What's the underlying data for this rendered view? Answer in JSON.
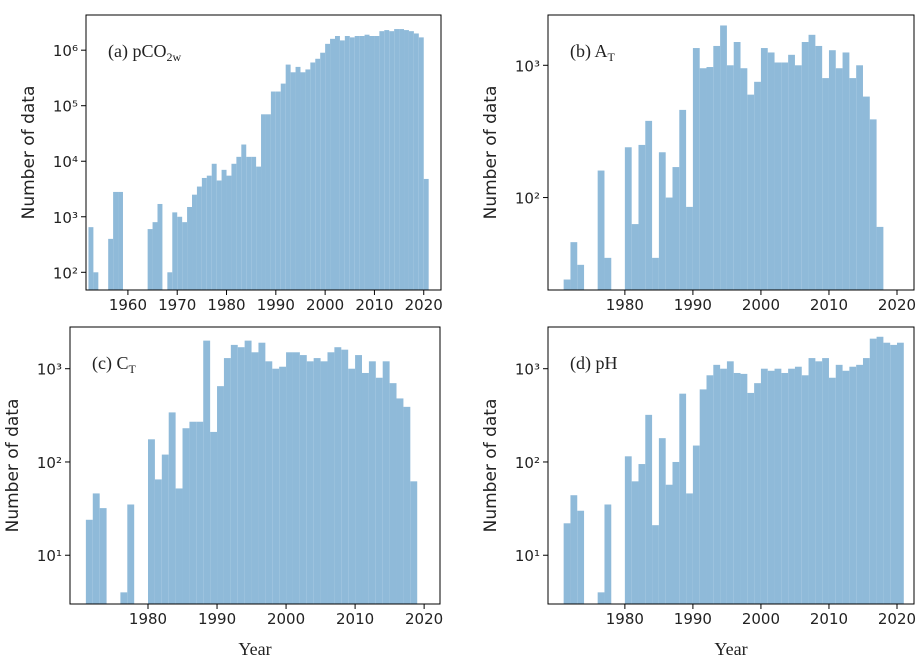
{
  "chart_data": [
    {
      "type": "histogram",
      "label": "(a) pCO",
      "label_sub": "2w",
      "ylabel": "Number of data",
      "color": "#8fbad9",
      "log_y": true,
      "bins": [
        1952,
        1953,
        1954,
        1955,
        1956,
        1957,
        1958,
        1959,
        1960,
        1961,
        1962,
        1963,
        1964,
        1965,
        1966,
        1967,
        1968,
        1969,
        1970,
        1971,
        1972,
        1973,
        1974,
        1975,
        1976,
        1977,
        1978,
        1979,
        1980,
        1981,
        1982,
        1983,
        1984,
        1985,
        1986,
        1987,
        1988,
        1989,
        1990,
        1991,
        1992,
        1993,
        1994,
        1995,
        1996,
        1997,
        1998,
        1999,
        2000,
        2001,
        2002,
        2003,
        2004,
        2005,
        2006,
        2007,
        2008,
        2009,
        2010,
        2011,
        2012,
        2013,
        2014,
        2015,
        2016,
        2017,
        2018,
        2019,
        2020,
        2021
      ],
      "values": [
        650,
        100,
        0,
        0,
        400,
        2800,
        2800,
        0,
        0,
        0,
        0,
        0,
        600,
        800,
        1700,
        0,
        100,
        1200,
        1000,
        800,
        1500,
        2500,
        3500,
        5000,
        5500,
        9000,
        4500,
        7000,
        5500,
        9000,
        12000,
        20000,
        12000,
        12000,
        8000,
        70000,
        70000,
        180000,
        180000,
        250000,
        550000,
        400000,
        500000,
        400000,
        450000,
        600000,
        700000,
        900000,
        1300000,
        1600000,
        1800000,
        1500000,
        1800000,
        1700000,
        1800000,
        1800000,
        1900000,
        1800000,
        1800000,
        2200000,
        2300000,
        2200000,
        2400000,
        2400000,
        2300000,
        2200000,
        2000000,
        1700000,
        4800
      ],
      "xlim": [
        1951.5,
        2023.5
      ],
      "xticks": [
        1960,
        1970,
        1980,
        1990,
        2000,
        2010,
        2020
      ],
      "ylim": [
        48,
        4300000
      ],
      "yticks": [
        {
          "value": 100,
          "label": "10²"
        },
        {
          "value": 1000,
          "label": "10³"
        },
        {
          "value": 10000,
          "label": "10⁴"
        },
        {
          "value": 100000,
          "label": "10⁵"
        },
        {
          "value": 1000000,
          "label": "10⁶"
        }
      ]
    },
    {
      "type": "histogram",
      "label": "(b) A",
      "label_sub": "T",
      "ylabel": "Number of data",
      "color": "#8fbad9",
      "log_y": true,
      "bins": [
        1971,
        1972,
        1973,
        1974,
        1975,
        1976,
        1977,
        1978,
        1979,
        1980,
        1981,
        1982,
        1983,
        1984,
        1985,
        1986,
        1987,
        1988,
        1989,
        1990,
        1991,
        1992,
        1993,
        1994,
        1995,
        1996,
        1997,
        1998,
        1999,
        2000,
        2001,
        2002,
        2003,
        2004,
        2005,
        2006,
        2007,
        2008,
        2009,
        2010,
        2011,
        2012,
        2013,
        2014,
        2015,
        2016,
        2017,
        2018
      ],
      "values": [
        24,
        46,
        31,
        0,
        0,
        160,
        35,
        0,
        0,
        240,
        63,
        250,
        380,
        35,
        220,
        100,
        170,
        460,
        85,
        1350,
        950,
        970,
        1400,
        2000,
        1000,
        1500,
        950,
        600,
        750,
        1350,
        1250,
        1050,
        1050,
        1200,
        1000,
        1500,
        1700,
        1400,
        800,
        1300,
        950,
        1250,
        800,
        1000,
        580,
        390,
        60
      ],
      "xlim": [
        1968.7,
        2022.5
      ],
      "xticks": [
        1980,
        1990,
        2000,
        2010,
        2020
      ],
      "ylim": [
        20,
        2400
      ],
      "yticks": [
        {
          "value": 100,
          "label": "10²"
        },
        {
          "value": 1000,
          "label": "10³"
        }
      ]
    },
    {
      "type": "histogram",
      "label": "(c) C",
      "label_sub": "T",
      "ylabel": "Number of data",
      "xlabel": "Year",
      "color": "#8fbad9",
      "log_y": true,
      "bins": [
        1971,
        1972,
        1973,
        1974,
        1975,
        1976,
        1977,
        1978,
        1979,
        1980,
        1981,
        1982,
        1983,
        1984,
        1985,
        1986,
        1987,
        1988,
        1989,
        1990,
        1991,
        1992,
        1993,
        1994,
        1995,
        1996,
        1997,
        1998,
        1999,
        2000,
        2001,
        2002,
        2003,
        2004,
        2005,
        2006,
        2007,
        2008,
        2009,
        2010,
        2011,
        2012,
        2013,
        2014,
        2015,
        2016,
        2017,
        2018,
        2019
      ],
      "values": [
        24,
        46,
        32,
        0,
        0,
        4,
        35,
        0,
        0,
        175,
        65,
        120,
        340,
        52,
        230,
        270,
        270,
        2000,
        210,
        650,
        1300,
        1800,
        1700,
        2000,
        1500,
        1900,
        1200,
        1000,
        1050,
        1500,
        1500,
        1400,
        1200,
        1300,
        1200,
        1500,
        1700,
        1600,
        1000,
        1400,
        900,
        1200,
        800,
        1200,
        700,
        480,
        390,
        62
      ],
      "xlim": [
        1968.7,
        2022.3
      ],
      "xticks": [
        1980,
        1990,
        2000,
        2010,
        2020
      ],
      "ylim": [
        3,
        2800
      ],
      "yticks": [
        {
          "value": 10,
          "label": "10¹"
        },
        {
          "value": 100,
          "label": "10²"
        },
        {
          "value": 1000,
          "label": "10³"
        }
      ]
    },
    {
      "type": "histogram",
      "label": "(d) pH",
      "ylabel": "Number of data",
      "xlabel": "Year",
      "color": "#8fbad9",
      "log_y": true,
      "bins": [
        1971,
        1972,
        1973,
        1974,
        1975,
        1976,
        1977,
        1978,
        1979,
        1980,
        1981,
        1982,
        1983,
        1984,
        1985,
        1986,
        1987,
        1988,
        1989,
        1990,
        1991,
        1992,
        1993,
        1994,
        1995,
        1996,
        1997,
        1998,
        1999,
        2000,
        2001,
        2002,
        2003,
        2004,
        2005,
        2006,
        2007,
        2008,
        2009,
        2010,
        2011,
        2012,
        2013,
        2014,
        2015,
        2016,
        2017,
        2018,
        2019,
        2020,
        2021
      ],
      "values": [
        22,
        44,
        30,
        0,
        0,
        4,
        35,
        0,
        0,
        115,
        62,
        95,
        320,
        21,
        180,
        57,
        100,
        540,
        46,
        150,
        600,
        850,
        1100,
        1000,
        1200,
        900,
        880,
        550,
        700,
        1000,
        950,
        1000,
        900,
        1000,
        1050,
        850,
        1300,
        1200,
        1300,
        800,
        1100,
        950,
        1050,
        1100,
        1300,
        2100,
        2200,
        1900,
        1800,
        1900
      ],
      "xlim": [
        1968.7,
        2022.5
      ],
      "xticks": [
        1980,
        1990,
        2000,
        2010,
        2020
      ],
      "ylim": [
        3,
        2800
      ],
      "yticks": [
        {
          "value": 10,
          "label": "10¹"
        },
        {
          "value": 100,
          "label": "10²"
        },
        {
          "value": 1000,
          "label": "10³"
        }
      ]
    }
  ]
}
